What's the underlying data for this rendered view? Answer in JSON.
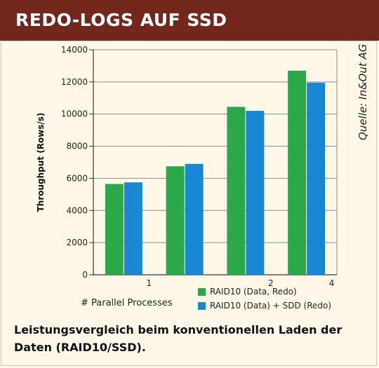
{
  "banner": {
    "title": "REDO-LOGS AUF SSD"
  },
  "source": "Quelle: In&Out AG",
  "caption": "Leistungsvergleich beim konventionellen Laden der Daten (RAID10/SSD).",
  "colors": {
    "banner": "#73271c",
    "series1": "#2aa84a",
    "series2": "#1a87d4"
  },
  "chart_data": {
    "type": "bar",
    "categories": [
      "1",
      "",
      "2",
      "4"
    ],
    "xlabel": "# Parallel Processes",
    "ylabel": "Throughput (Rows/s)",
    "ylim": [
      0,
      14000
    ],
    "yticks": [
      "0",
      "2000",
      "4000",
      "6000",
      "8000",
      "10000",
      "12000",
      "14000"
    ],
    "grid": true,
    "legend_position": "bottom-right",
    "series": [
      {
        "name": "RAID10 (Data, Redo)",
        "color": "#2aa84a",
        "values": [
          5650,
          6750,
          10450,
          12700
        ]
      },
      {
        "name": "RAID10 (Data) + SDD (Redo)",
        "color": "#1a87d4",
        "values": [
          5750,
          6900,
          10200,
          11950
        ]
      }
    ]
  }
}
